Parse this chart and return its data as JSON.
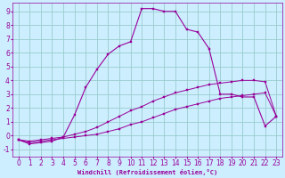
{
  "xlabel": "Windchill (Refroidissement éolien,°C)",
  "x_values": [
    0,
    1,
    2,
    3,
    4,
    5,
    6,
    7,
    8,
    9,
    10,
    11,
    12,
    13,
    14,
    15,
    16,
    17,
    18,
    19,
    20,
    21,
    22,
    23
  ],
  "line1": [
    -0.3,
    -0.5,
    -0.4,
    -0.3,
    -0.2,
    -0.1,
    0.0,
    0.1,
    0.3,
    0.5,
    0.8,
    1.0,
    1.3,
    1.6,
    1.9,
    2.1,
    2.3,
    2.5,
    2.7,
    2.8,
    2.9,
    3.0,
    3.1,
    1.4
  ],
  "line2": [
    -0.3,
    -0.4,
    -0.3,
    -0.2,
    -0.1,
    0.1,
    0.3,
    0.6,
    1.0,
    1.4,
    1.8,
    2.1,
    2.5,
    2.8,
    3.1,
    3.3,
    3.5,
    3.7,
    3.8,
    3.9,
    4.0,
    4.0,
    3.9,
    1.4
  ],
  "line3": [
    -0.3,
    -0.6,
    -0.5,
    -0.4,
    -0.1,
    1.5,
    3.5,
    4.8,
    5.9,
    6.5,
    6.8,
    9.2,
    9.2,
    9.0,
    9.0,
    7.7,
    7.5,
    6.3,
    3.0,
    3.0,
    2.8,
    2.8,
    0.7,
    1.4
  ],
  "line_color": "#990099",
  "bg_color": "#cceeff",
  "grid_color": "#99cccc",
  "ylim": [
    -1.5,
    9.6
  ],
  "xlim": [
    -0.5,
    23.5
  ],
  "yticks": [
    -1,
    0,
    1,
    2,
    3,
    4,
    5,
    6,
    7,
    8,
    9
  ],
  "xticks": [
    0,
    1,
    2,
    3,
    4,
    5,
    6,
    7,
    8,
    9,
    10,
    11,
    12,
    13,
    14,
    15,
    16,
    17,
    18,
    19,
    20,
    21,
    22,
    23
  ],
  "xlabel_fontsize": 5.0,
  "tick_fontsize": 5.5
}
